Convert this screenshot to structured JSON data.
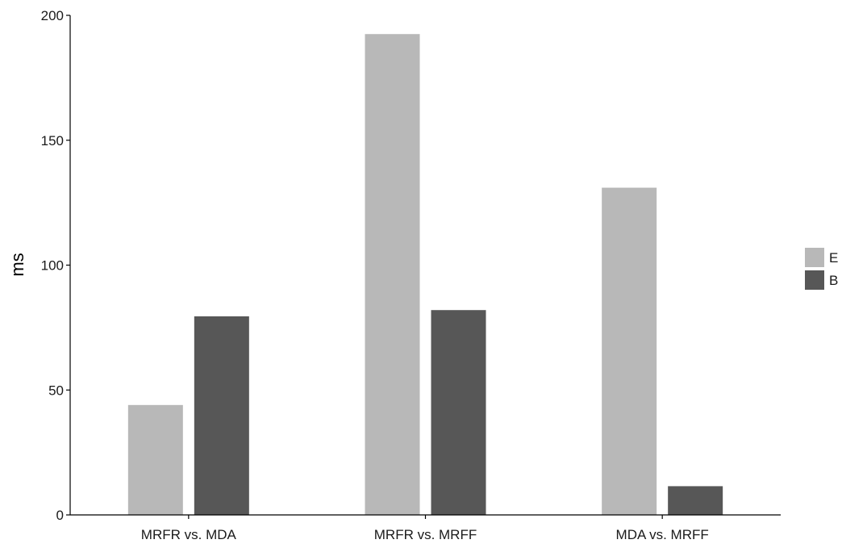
{
  "chart_data": {
    "type": "bar",
    "categories": [
      "MRFR vs. MDA",
      "MRFR vs. MRFF",
      "MDA vs. MRFF"
    ],
    "series": [
      {
        "name": "E",
        "color": "#b8b8b8",
        "values": [
          44,
          192.5,
          131
        ]
      },
      {
        "name": "B",
        "color": "#575757",
        "values": [
          79.5,
          82,
          11.5
        ]
      }
    ],
    "xlabel": "",
    "ylabel": "ms",
    "ylim": [
      0,
      200
    ],
    "yticks": [
      0,
      50,
      100,
      150,
      200
    ],
    "grid": false,
    "legend": "right"
  }
}
